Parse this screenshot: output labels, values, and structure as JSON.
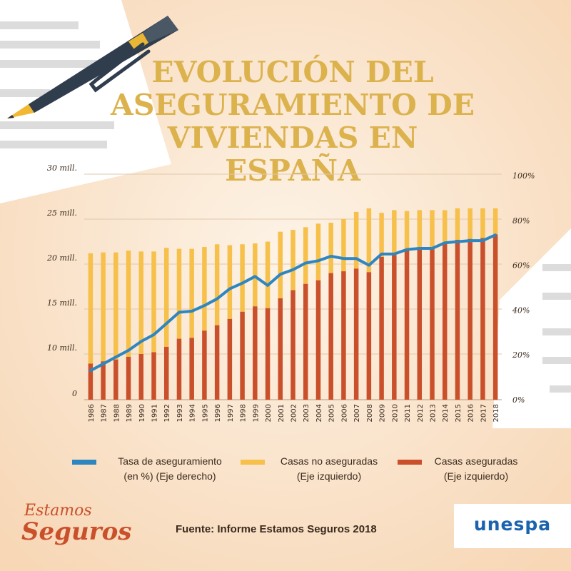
{
  "title_lines": [
    "EVOLUCIÓN DEL",
    "ASEGURAMIENTO DE",
    "VIVIENDAS EN ESPAÑA"
  ],
  "colors": {
    "title": "#dcb24d",
    "rate_line": "#2e86c1",
    "uninsured": "#f7c04a",
    "insured": "#c9502a",
    "text": "#3b2a1e",
    "background": "#fbe6cf",
    "logo": "#1b63ae"
  },
  "legend": {
    "rate_line1": "Tasa de aseguramiento",
    "rate_line2": "(en %)  (Eje derecho)",
    "uninsured_line1": "Casas no aseguradas",
    "uninsured_line2": "(Eje izquierdo)",
    "insured_line1": "Casas aseguradas",
    "insured_line2": "(Eje izquierdo)"
  },
  "source": "Fuente: Informe Estamos Seguros 2018",
  "brand": {
    "logo": "unespa",
    "campaign": "Estamos seguros"
  },
  "chart_data": {
    "type": "bar",
    "stacked": true,
    "categories": [
      "1986",
      "1987",
      "1988",
      "1989",
      "1990",
      "1991",
      "1992",
      "1993",
      "1994",
      "1995",
      "1996",
      "1997",
      "1998",
      "1999",
      "2000",
      "2001",
      "2002",
      "2003",
      "2004",
      "2005",
      "2006",
      "2007",
      "2008",
      "2009",
      "2010",
      "2011",
      "2012",
      "2013",
      "2014",
      "2015",
      "2016",
      "2017",
      "2018"
    ],
    "left_axis": {
      "ticks": [
        "0",
        "10 mill.",
        "15 mill.",
        "20 mill.",
        "25 mill.",
        "30 mill."
      ]
    },
    "right_axis": {
      "ticks": [
        "0%",
        "20%",
        "40%",
        "60%",
        "80%",
        "100%"
      ],
      "ylim": [
        0,
        100
      ]
    },
    "series": [
      {
        "name": "Casas aseguradas",
        "axis": "left",
        "values": [
          7.9,
          8.4,
          8.8,
          9.4,
          10.0,
          10.2,
          10.8,
          11.7,
          11.8,
          12.6,
          13.2,
          13.9,
          14.7,
          15.3,
          15.1,
          16.2,
          17.1,
          17.8,
          18.2,
          19.0,
          19.2,
          19.5,
          19.1,
          20.8,
          21.0,
          21.6,
          21.7,
          21.8,
          22.4,
          22.7,
          22.8,
          22.9,
          23.3
        ]
      },
      {
        "name": "Casas no aseguradas",
        "axis": "left",
        "values": [
          13.3,
          12.9,
          12.5,
          12.1,
          11.4,
          11.2,
          11.0,
          10.0,
          9.9,
          9.3,
          9.0,
          8.2,
          7.5,
          7.0,
          7.4,
          7.4,
          6.7,
          6.3,
          6.3,
          5.6,
          5.8,
          6.3,
          7.1,
          4.9,
          5.0,
          4.3,
          4.3,
          4.2,
          3.6,
          3.5,
          3.4,
          3.3,
          2.9
        ]
      },
      {
        "name": "Tasa de aseguramiento",
        "type": "line",
        "axis": "right",
        "values": [
          13,
          16,
          19,
          22,
          26,
          29,
          34,
          39,
          39.5,
          42,
          45,
          49.5,
          52,
          55,
          51,
          56,
          58,
          61,
          62,
          64,
          63,
          63,
          60,
          65,
          65,
          67,
          67.5,
          67.5,
          70,
          70.5,
          71,
          71,
          73.5
        ]
      }
    ]
  }
}
